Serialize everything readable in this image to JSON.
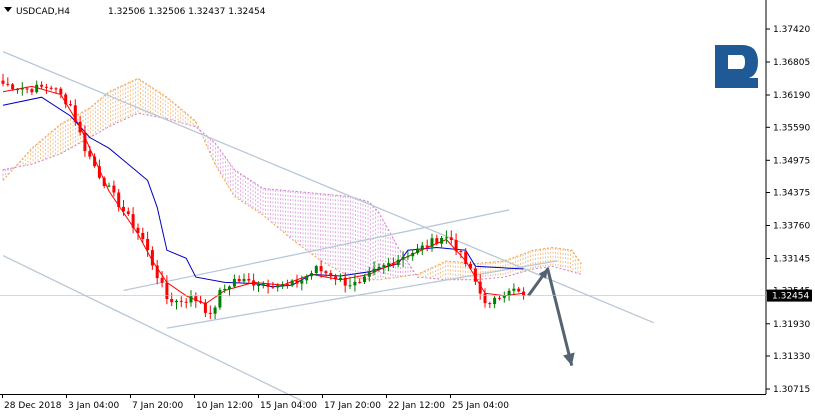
{
  "header": {
    "symbol": "USDCAD,H4",
    "ohlc": "1.32506 1.32506 1.32437 1.32454"
  },
  "colors": {
    "bull": "#008000",
    "bear": "#ff0000",
    "kijun": "#0000c0",
    "tenkan": "#ff0000",
    "cloud_up": "#f0a050",
    "cloud_down": "#d080d0",
    "channel": "#b8c8d8",
    "arrow": "#556270",
    "logo": "#1f5a96",
    "price_tag_bg": "#000000",
    "price_tag_fg": "#ffffff"
  },
  "chart_data": {
    "type": "candlestick",
    "title": "",
    "xlabel": "",
    "ylabel": "",
    "ylim": [
      1.304,
      1.378
    ],
    "grid": false,
    "current_price": "1.32454",
    "y_ticks": [
      "1.37420",
      "1.36805",
      "1.36190",
      "1.35590",
      "1.34975",
      "1.34375",
      "1.33760",
      "1.33145",
      "1.32545",
      "1.31930",
      "1.31330",
      "1.30715"
    ],
    "x_labels": [
      "28 Dec 2018",
      "3 Jan 04:00",
      "7 Jan 20:00",
      "10 Jan 12:00",
      "15 Jan 04:00",
      "17 Jan 20:00",
      "22 Jan 12:00",
      "25 Jan 04:00"
    ],
    "candle_count": 120,
    "close_path": [
      {
        "i": 0,
        "v": 1.364
      },
      {
        "i": 5,
        "v": 1.363
      },
      {
        "i": 10,
        "v": 1.3635
      },
      {
        "i": 14,
        "v": 1.36
      },
      {
        "i": 17,
        "v": 1.352
      },
      {
        "i": 20,
        "v": 1.347
      },
      {
        "i": 23,
        "v": 1.343
      },
      {
        "i": 26,
        "v": 1.339
      },
      {
        "i": 29,
        "v": 1.335
      },
      {
        "i": 31,
        "v": 1.3305
      },
      {
        "i": 34,
        "v": 1.324
      },
      {
        "i": 36,
        "v": 1.3235
      },
      {
        "i": 39,
        "v": 1.324
      },
      {
        "i": 41,
        "v": 1.3235
      },
      {
        "i": 43,
        "v": 1.3205
      },
      {
        "i": 45,
        "v": 1.325
      },
      {
        "i": 48,
        "v": 1.3275
      },
      {
        "i": 52,
        "v": 1.327
      },
      {
        "i": 56,
        "v": 1.3268
      },
      {
        "i": 59,
        "v": 1.3262
      },
      {
        "i": 62,
        "v": 1.3275
      },
      {
        "i": 65,
        "v": 1.3295
      },
      {
        "i": 68,
        "v": 1.3285
      },
      {
        "i": 71,
        "v": 1.327
      },
      {
        "i": 74,
        "v": 1.3265
      },
      {
        "i": 77,
        "v": 1.329
      },
      {
        "i": 80,
        "v": 1.3305
      },
      {
        "i": 83,
        "v": 1.332
      },
      {
        "i": 86,
        "v": 1.333
      },
      {
        "i": 89,
        "v": 1.3345
      },
      {
        "i": 91,
        "v": 1.3355
      },
      {
        "i": 93,
        "v": 1.335
      },
      {
        "i": 95,
        "v": 1.332
      },
      {
        "i": 97,
        "v": 1.329
      },
      {
        "i": 99,
        "v": 1.325
      },
      {
        "i": 101,
        "v": 1.3225
      },
      {
        "i": 103,
        "v": 1.3245
      },
      {
        "i": 105,
        "v": 1.326
      },
      {
        "i": 107,
        "v": 1.325
      },
      {
        "i": 108,
        "v": 1.32454
      }
    ],
    "kijun": [
      {
        "i": 0,
        "v": 1.36
      },
      {
        "i": 8,
        "v": 1.3615
      },
      {
        "i": 14,
        "v": 1.358
      },
      {
        "i": 18,
        "v": 1.354
      },
      {
        "i": 22,
        "v": 1.352
      },
      {
        "i": 26,
        "v": 1.349
      },
      {
        "i": 30,
        "v": 1.346
      },
      {
        "i": 32,
        "v": 1.341
      },
      {
        "i": 34,
        "v": 1.333
      },
      {
        "i": 38,
        "v": 1.3315
      },
      {
        "i": 40,
        "v": 1.328
      },
      {
        "i": 46,
        "v": 1.327
      },
      {
        "i": 52,
        "v": 1.3268
      },
      {
        "i": 56,
        "v": 1.3262
      },
      {
        "i": 60,
        "v": 1.3265
      },
      {
        "i": 64,
        "v": 1.3285
      },
      {
        "i": 70,
        "v": 1.3282
      },
      {
        "i": 76,
        "v": 1.329
      },
      {
        "i": 82,
        "v": 1.3305
      },
      {
        "i": 84,
        "v": 1.333
      },
      {
        "i": 90,
        "v": 1.3335
      },
      {
        "i": 96,
        "v": 1.333
      },
      {
        "i": 98,
        "v": 1.33
      },
      {
        "i": 108,
        "v": 1.3295
      }
    ],
    "tenkan": [
      {
        "i": 0,
        "v": 1.3625
      },
      {
        "i": 6,
        "v": 1.3635
      },
      {
        "i": 12,
        "v": 1.362
      },
      {
        "i": 16,
        "v": 1.356
      },
      {
        "i": 19,
        "v": 1.35
      },
      {
        "i": 22,
        "v": 1.344
      },
      {
        "i": 25,
        "v": 1.34
      },
      {
        "i": 28,
        "v": 1.336
      },
      {
        "i": 31,
        "v": 1.331
      },
      {
        "i": 34,
        "v": 1.327
      },
      {
        "i": 38,
        "v": 1.3245
      },
      {
        "i": 42,
        "v": 1.323
      },
      {
        "i": 46,
        "v": 1.3255
      },
      {
        "i": 52,
        "v": 1.327
      },
      {
        "i": 58,
        "v": 1.3265
      },
      {
        "i": 64,
        "v": 1.3285
      },
      {
        "i": 70,
        "v": 1.3275
      },
      {
        "i": 76,
        "v": 1.3285
      },
      {
        "i": 82,
        "v": 1.331
      },
      {
        "i": 88,
        "v": 1.3335
      },
      {
        "i": 92,
        "v": 1.335
      },
      {
        "i": 96,
        "v": 1.331
      },
      {
        "i": 100,
        "v": 1.325
      },
      {
        "i": 104,
        "v": 1.3245
      },
      {
        "i": 108,
        "v": 1.325
      }
    ],
    "cloud": [
      {
        "i": 0,
        "a": 1.346,
        "b": 1.348
      },
      {
        "i": 6,
        "a": 1.352,
        "b": 1.349
      },
      {
        "i": 12,
        "a": 1.3565,
        "b": 1.351
      },
      {
        "i": 18,
        "a": 1.3595,
        "b": 1.354
      },
      {
        "i": 22,
        "a": 1.3625,
        "b": 1.356
      },
      {
        "i": 28,
        "a": 1.365,
        "b": 1.3585
      },
      {
        "i": 34,
        "a": 1.3615,
        "b": 1.3575
      },
      {
        "i": 40,
        "a": 1.357,
        "b": 1.356
      },
      {
        "i": 44,
        "a": 1.349,
        "b": 1.353
      },
      {
        "i": 48,
        "a": 1.343,
        "b": 1.348
      },
      {
        "i": 54,
        "a": 1.3395,
        "b": 1.3445
      },
      {
        "i": 60,
        "a": 1.335,
        "b": 1.344
      },
      {
        "i": 66,
        "a": 1.331,
        "b": 1.3435
      },
      {
        "i": 72,
        "a": 1.328,
        "b": 1.343
      },
      {
        "i": 76,
        "a": 1.3275,
        "b": 1.342
      },
      {
        "i": 78,
        "a": 1.3275,
        "b": 1.34
      },
      {
        "i": 82,
        "a": 1.328,
        "b": 1.3335
      },
      {
        "i": 86,
        "a": 1.3285,
        "b": 1.328
      },
      {
        "i": 92,
        "a": 1.331,
        "b": 1.3275
      },
      {
        "i": 98,
        "a": 1.3305,
        "b": 1.3275
      },
      {
        "i": 104,
        "a": 1.331,
        "b": 1.328
      },
      {
        "i": 110,
        "a": 1.333,
        "b": 1.3295
      },
      {
        "i": 114,
        "a": 1.3335,
        "b": 1.33
      },
      {
        "i": 118,
        "a": 1.333,
        "b": 1.329
      },
      {
        "i": 120,
        "a": 1.3305,
        "b": 1.3285
      }
    ],
    "trend_lines": [
      {
        "name": "upper-descending-channel",
        "from": {
          "i": 0,
          "v": 1.37
        },
        "to": {
          "i": 135,
          "v": 1.3195
        }
      },
      {
        "name": "lower-descending-channel",
        "from": {
          "i": 0,
          "v": 1.332
        },
        "to": {
          "i": 63,
          "v": 1.3045
        }
      },
      {
        "name": "ascending-channel-top",
        "from": {
          "i": 25,
          "v": 1.3255
        },
        "to": {
          "i": 105,
          "v": 1.3405
        }
      },
      {
        "name": "ascending-channel-bottom",
        "from": {
          "i": 34,
          "v": 1.3185
        },
        "to": {
          "i": 115,
          "v": 1.331
        }
      }
    ],
    "forecast_arrow": [
      {
        "i": 109,
        "v": 1.32454
      },
      {
        "i": 113,
        "v": 1.3295
      },
      {
        "i": 118,
        "v": 1.3115
      }
    ]
  }
}
